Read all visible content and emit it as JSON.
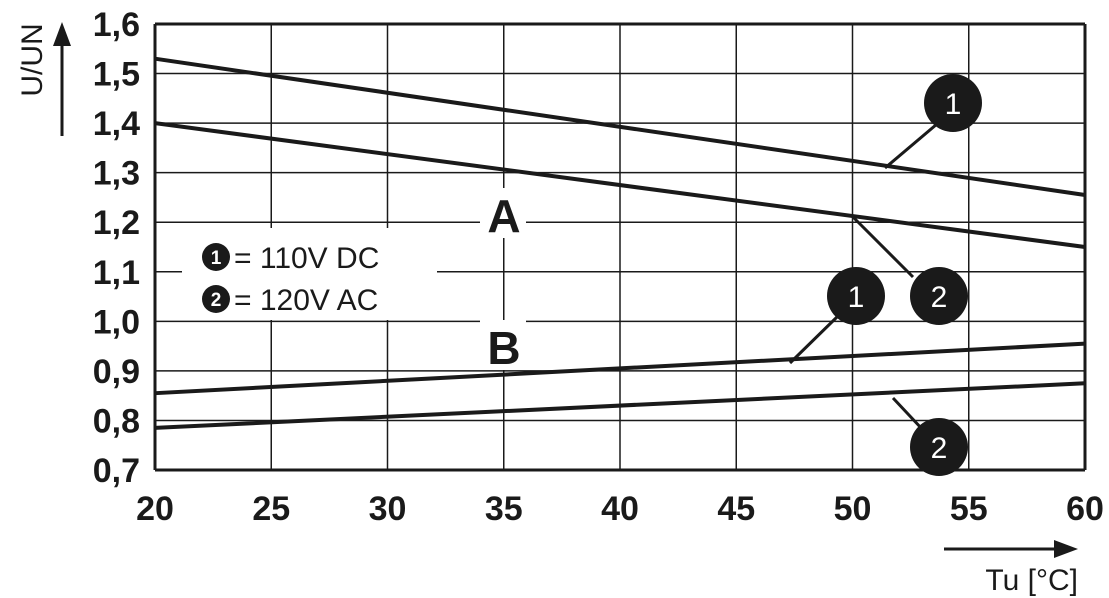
{
  "chart_data": {
    "type": "line",
    "xlabel": "Tu [°C]",
    "ylabel": "U/UN",
    "xlim": [
      20,
      60
    ],
    "ylim": [
      0.7,
      1.6
    ],
    "x_ticks": [
      20,
      25,
      30,
      35,
      40,
      45,
      50,
      55,
      60
    ],
    "x_tick_labels": [
      "20",
      "25",
      "30",
      "35",
      "40",
      "45",
      "50",
      "55",
      "60"
    ],
    "y_ticks": [
      0.7,
      0.8,
      0.9,
      1.0,
      1.1,
      1.2,
      1.3,
      1.4,
      1.5,
      1.6
    ],
    "y_tick_labels": [
      "0,7",
      "0,8",
      "0,9",
      "1,0",
      "1,1",
      "1,2",
      "1,3",
      "1,4",
      "1,5",
      "1,6"
    ],
    "grid": true,
    "regions": [
      "A",
      "B"
    ],
    "legend": [
      {
        "marker": "1",
        "text": "= 110V DC"
      },
      {
        "marker": "2",
        "text": "= 120V AC"
      }
    ],
    "series": [
      {
        "group": "A",
        "marker": "1",
        "x": [
          20,
          60
        ],
        "y": [
          1.53,
          1.255
        ]
      },
      {
        "group": "A",
        "marker": "2",
        "x": [
          20,
          60
        ],
        "y": [
          1.4,
          1.15
        ]
      },
      {
        "group": "B",
        "marker": "1",
        "x": [
          20,
          60
        ],
        "y": [
          0.855,
          0.955
        ]
      },
      {
        "group": "B",
        "marker": "2",
        "x": [
          20,
          60
        ],
        "y": [
          0.785,
          0.875
        ]
      }
    ],
    "line_color": "#1a1a1a",
    "marker_color": "#1a1a1a"
  }
}
